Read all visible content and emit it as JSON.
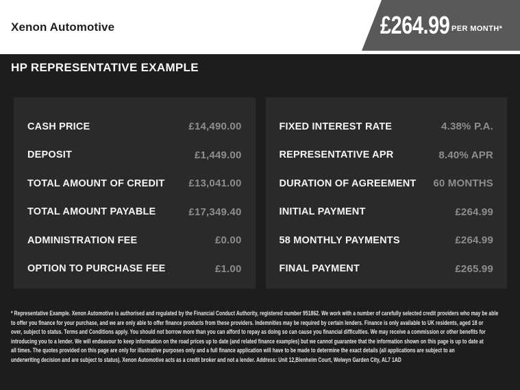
{
  "brand": "Xenon Automotive",
  "price_banner": {
    "amount": "£264.99",
    "period": "PER MONTH*"
  },
  "heading": "HP REPRESENTATIVE EXAMPLE",
  "finance": {
    "left_rows": [
      {
        "label": "CASH PRICE",
        "value": "£14,490.00"
      },
      {
        "label": "DEPOSIT",
        "value": "£1,449.00"
      },
      {
        "label": "TOTAL AMOUNT OF CREDIT",
        "value": "£13,041.00"
      },
      {
        "label": "TOTAL AMOUNT PAYABLE",
        "value": "£17,349.40"
      },
      {
        "label": "ADMINISTRATION FEE",
        "value": "£0.00"
      },
      {
        "label": "OPTION TO PURCHASE FEE",
        "value": "£1.00"
      }
    ],
    "right_rows": [
      {
        "label": "FIXED INTEREST RATE",
        "value": "4.38% P.A."
      },
      {
        "label": "REPRESENTATIVE APR",
        "value": "8.40% APR"
      },
      {
        "label": "DURATION OF AGREEMENT",
        "value": "60 MONTHS"
      },
      {
        "label": "INITIAL PAYMENT",
        "value": "£264.99"
      },
      {
        "label": "58 MONTHLY PAYMENTS",
        "value": "£264.99"
      },
      {
        "label": "FINAL PAYMENT",
        "value": "£265.99"
      }
    ]
  },
  "disclaimer_lines": [
    "* Representative Example. Xenon Automotive is authorised and regulated by the Financial Conduct Authority, registered number 951862. We work with a number of carefully selected credit providers who may be able",
    "to offer you finance for your purchase, and we are only able to offer finance products from these providers. Indemnities may be required by certain lenders. Finance is only available to UK residents, aged 18 or",
    "over, subject to status. Terms and Conditions apply. You should not borrow more than you can afford to repay as doing so can cause you financial difficulties. We may receive a commission or other benefits for",
    "introducing you to a lender. We will endeavour to keep information on the road prices up to date (and related finance examples) but we cannot guarantee that the information shown on this page is up to date at",
    "all times. The quotes provided on this page are only for illustrative purposes only and a full finance application will have to be made to determine the exact details (all applications are subject to an",
    "underwriting decision and are subject to status). Xenon Automotive acts as a credit broker and not a lender. Address: Unit 12,Blenheim Court, Welwyn Garden City, AL7 1AD"
  ],
  "colors": {
    "banner_bg": "#595959",
    "page_dark_bg": "#1d1d1d",
    "panel_bg": "#2a2a2a",
    "label_text": "#f5f5f5",
    "value_text": "#8e8e8e"
  }
}
